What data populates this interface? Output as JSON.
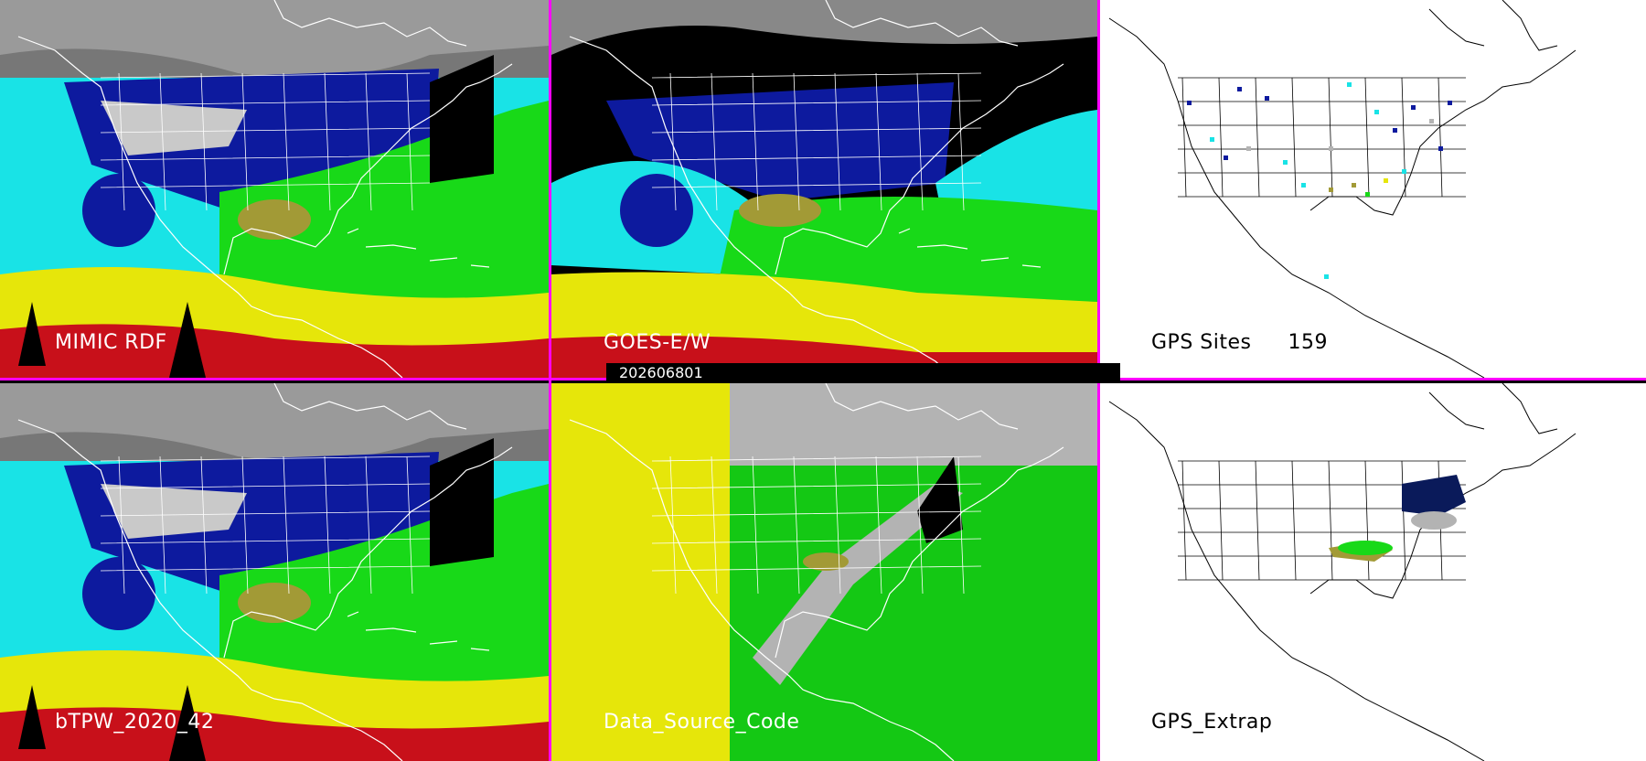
{
  "panels": [
    {
      "id": "mimic",
      "label": "MIMIC RDF",
      "style": "tpw"
    },
    {
      "id": "goes",
      "label": "GOES-E/W",
      "style": "goes"
    },
    {
      "id": "gps_sites",
      "label": "GPS Sites",
      "count": "159",
      "style": "gps"
    },
    {
      "id": "btpw",
      "label": "bTPW_2020_42",
      "style": "tpw"
    },
    {
      "id": "data_source",
      "label": "Data_Source_Code",
      "style": "source"
    },
    {
      "id": "gps_extrap",
      "label": "GPS_Extrap",
      "style": "gpsx"
    }
  ],
  "timestamp": "202606801",
  "colors": {
    "divider": "#ff00ff",
    "ocean_cyan": "#19e3e6",
    "dark_blue": "#0d1a9e",
    "green": "#18d918",
    "yellow": "#e6e60a",
    "red": "#c8101a",
    "olive": "#a29a36",
    "gray": "#b3b3b3"
  }
}
